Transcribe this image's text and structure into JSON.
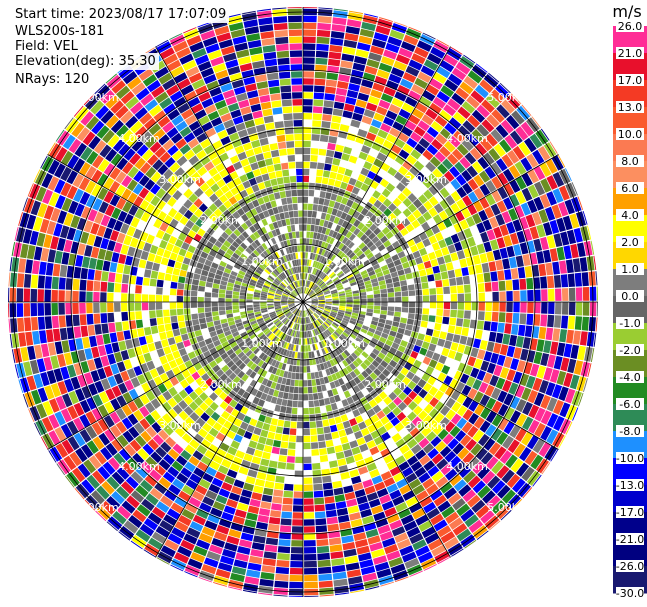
{
  "info": {
    "start_time": "Start time: 2023/08/17 17:07:09",
    "station": "WLS200s-181",
    "field": "Field: VEL",
    "elevation": "Elevation(deg): 35.30",
    "nrays": "NRays: 120"
  },
  "chart_data": {
    "type": "heatmap",
    "projection": "polar-ppi",
    "field": "VEL",
    "units": "m/s",
    "elevation_deg": 35.3,
    "n_rays": 120,
    "range_rings_km": [
      1.0,
      2.0,
      3.0,
      4.0,
      5.0
    ],
    "range_ring_labels": [
      "1.00km",
      "2.00km",
      "3.00km",
      "4.00km",
      "5.00km"
    ],
    "colorbar": {
      "title": "m/s",
      "ticks": [
        "26.0",
        "21.0",
        "17.0",
        "13.0",
        "10.0",
        "8.0",
        "6.0",
        "4.0",
        "2.0",
        "1.0",
        "0.0",
        "-1.0",
        "-2.0",
        "-4.0",
        "-6.0",
        "-8.0",
        "-10.0",
        "-13.0",
        "-17.0",
        "-21.0",
        "-26.0",
        "-30.0"
      ],
      "bins": [
        {
          "from": 21,
          "to": 26,
          "color": "#ff2d96"
        },
        {
          "from": 17,
          "to": 21,
          "color": "#e8102c"
        },
        {
          "from": 13,
          "to": 17,
          "color": "#f43a24"
        },
        {
          "from": 10,
          "to": 13,
          "color": "#fa5a2e"
        },
        {
          "from": 8,
          "to": 10,
          "color": "#fb7a52"
        },
        {
          "from": 6,
          "to": 8,
          "color": "#fc8f60"
        },
        {
          "from": 4,
          "to": 6,
          "color": "#ffa000"
        },
        {
          "from": 2,
          "to": 4,
          "color": "#ffff00"
        },
        {
          "from": 1,
          "to": 2,
          "color": "#ffd700"
        },
        {
          "from": 0,
          "to": 1,
          "color": "#7d7d7d"
        },
        {
          "from": -1,
          "to": 0,
          "color": "#666666"
        },
        {
          "from": -2,
          "to": -1,
          "color": "#9acd32"
        },
        {
          "from": -4,
          "to": -2,
          "color": "#6b8e23"
        },
        {
          "from": -6,
          "to": -4,
          "color": "#228b22"
        },
        {
          "from": -8,
          "to": -6,
          "color": "#2e8b57"
        },
        {
          "from": -10,
          "to": -8,
          "color": "#1e90ff"
        },
        {
          "from": -13,
          "to": -10,
          "color": "#0000ff"
        },
        {
          "from": -17,
          "to": -13,
          "color": "#0000cd"
        },
        {
          "from": -21,
          "to": -17,
          "color": "#00008b"
        },
        {
          "from": -26,
          "to": -21,
          "color": "#000080"
        },
        {
          "from": -30,
          "to": -26,
          "color": "#191970"
        }
      ]
    },
    "pattern": {
      "near_range_km": [
        0,
        2.0
      ],
      "near_dominant_values": [
        0.5,
        -0.5,
        -1.5
      ],
      "transition_range_km": [
        2.0,
        3.2
      ],
      "transition_values": [
        3.0,
        2.5,
        -1.5,
        0.5
      ],
      "far_range_km": [
        3.2,
        5.8
      ],
      "far_values": "noise (full color range)"
    },
    "grid": true
  }
}
